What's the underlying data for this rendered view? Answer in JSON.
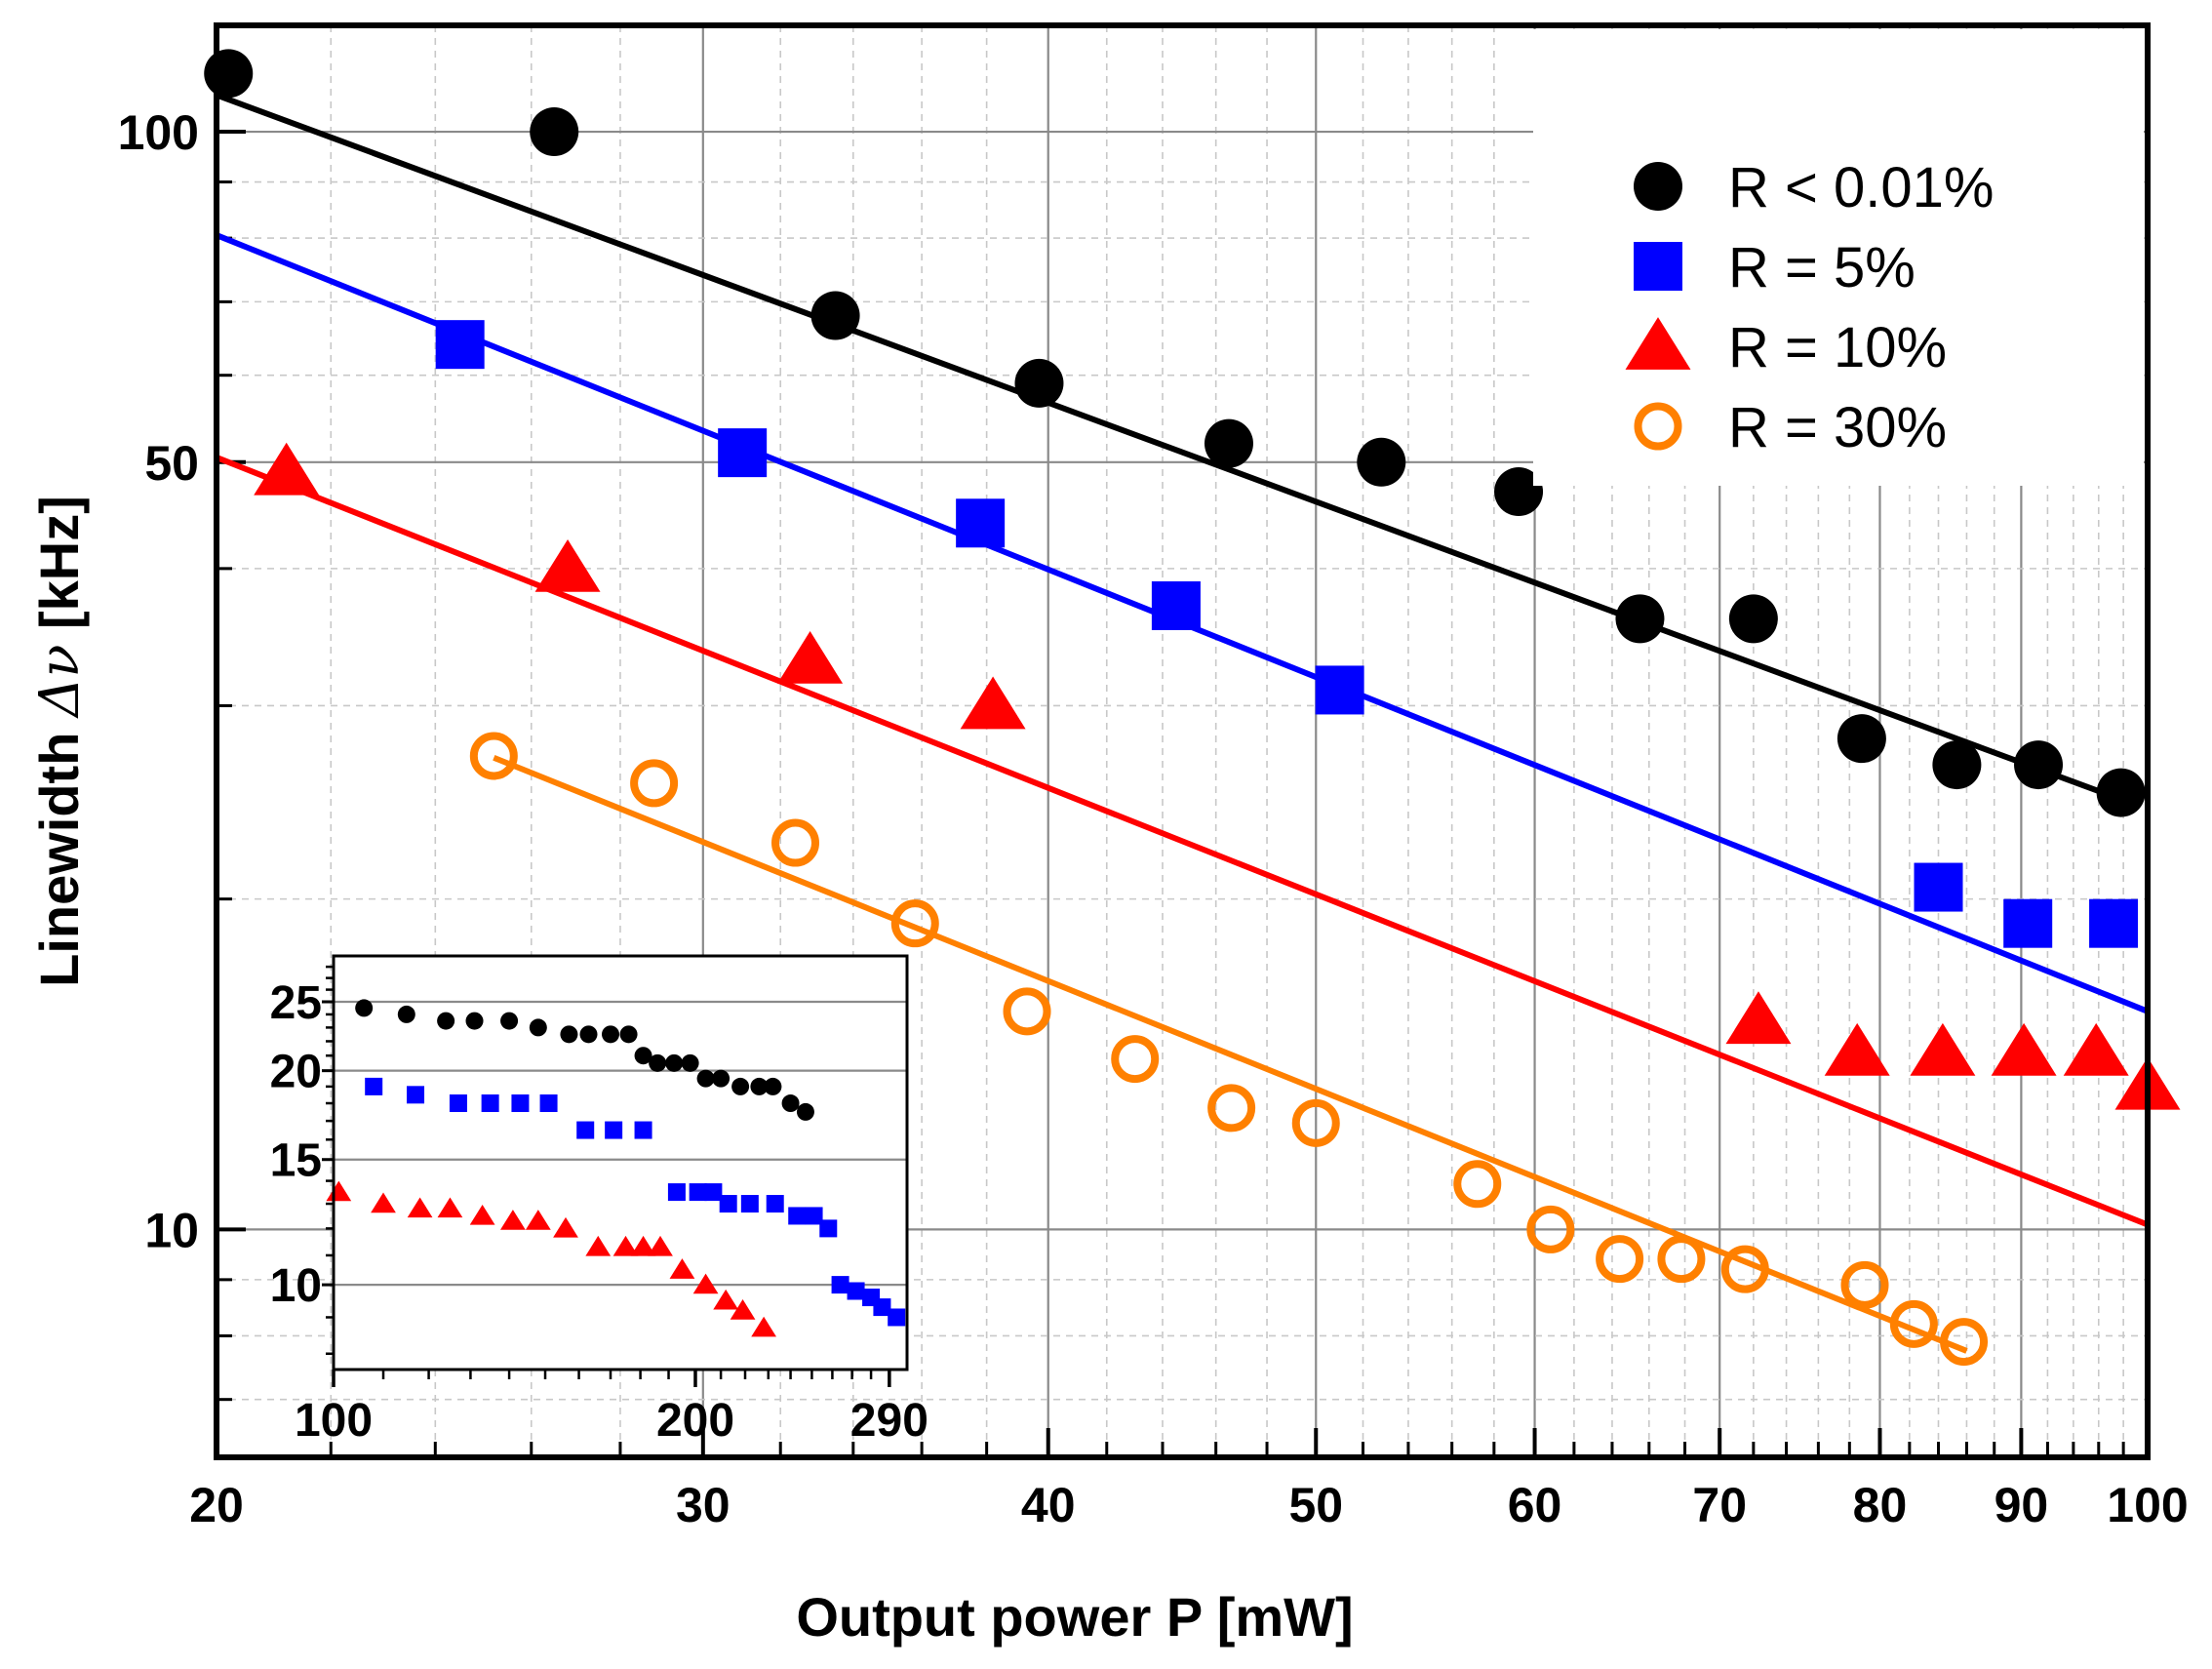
{
  "chart_data": [
    {
      "type": "scatter",
      "name": "main",
      "xlabel": "Output power P [mW]",
      "ylabel_prefix": "Linewidth ",
      "ylabel_symbol": "Δν",
      "ylabel_suffix": "  [kHz]",
      "xscale": "log",
      "yscale": "log",
      "xlim": [
        20,
        100
      ],
      "ylim": [
        6.2,
        125
      ],
      "grid": true,
      "xticks": [
        20,
        30,
        40,
        50,
        60,
        70,
        80,
        90,
        100
      ],
      "xtick_labels": [
        "20",
        "30",
        "40",
        "50",
        "60",
        "70",
        "80",
        "90",
        "100"
      ],
      "yticks": [
        10,
        50,
        100
      ],
      "ytick_labels": [
        "10",
        "50",
        "100"
      ],
      "legend_position": "top-right",
      "series": [
        {
          "name": "R < 0.01%",
          "marker": "filled-circle",
          "color": "#000000",
          "x": [
            20.2,
            26.5,
            33.5,
            39.7,
            46.5,
            52.8,
            59.2,
            65.5,
            72.0,
            78.8,
            85.3,
            91.3,
            97.8
          ],
          "y": [
            113,
            100,
            68,
            59,
            52,
            50,
            47,
            36,
            36,
            28,
            26.5,
            26.5,
            25
          ],
          "fit": {
            "x": [
              20,
              98
            ],
            "y": [
              108,
              24.6
            ]
          }
        },
        {
          "name": "R = 5%",
          "marker": "filled-square",
          "color": "#0000ff",
          "x": [
            24.5,
            31.0,
            37.8,
            44.5,
            51.0,
            84.0,
            90.5,
            97.2
          ],
          "y": [
            64,
            51,
            44,
            37,
            31,
            20.5,
            19,
            19
          ],
          "fit": {
            "x": [
              20,
              100
            ],
            "y": [
              80.5,
              15.8
            ]
          }
        },
        {
          "name": "R = 10%",
          "marker": "filled-triangle",
          "color": "#ff0000",
          "x": [
            21.2,
            26.8,
            32.8,
            38.2,
            72.3,
            78.5,
            84.3,
            90.2,
            95.8,
            100.0
          ],
          "y": [
            49,
            40,
            33,
            30,
            15.5,
            14.5,
            14.5,
            14.5,
            14.5,
            13.5
          ],
          "fit": {
            "x": [
              20,
              100
            ],
            "y": [
              50.5,
              10.1
            ]
          }
        },
        {
          "name": "R = 30%",
          "marker": "open-circle",
          "color": "#ff8000",
          "x": [
            25.2,
            28.8,
            32.4,
            35.8,
            39.3,
            43.0,
            46.6,
            50.0,
            57.2,
            60.8,
            64.4,
            67.8,
            71.5,
            79.0,
            82.3,
            85.8
          ],
          "y": [
            27,
            25.5,
            22.5,
            19,
            15.8,
            14.3,
            12.9,
            12.5,
            11,
            10,
            9.4,
            9.4,
            9.2,
            8.9,
            8.2,
            7.9
          ],
          "fit": {
            "x": [
              25.2,
              86
            ],
            "y": [
              26.9,
              7.75
            ]
          }
        }
      ]
    },
    {
      "type": "scatter",
      "name": "inset",
      "xscale": "log",
      "yscale": "log",
      "xlim": [
        100,
        300
      ],
      "ylim": [
        7.6,
        29
      ],
      "grid": true,
      "xticks": [
        100,
        200,
        290
      ],
      "xtick_labels": [
        "100",
        "200",
        "290"
      ],
      "yticks": [
        10,
        15,
        20,
        25
      ],
      "ytick_labels": [
        "10",
        "15",
        "20",
        "25"
      ],
      "series": [
        {
          "name": "R < 0.01%",
          "marker": "filled-circle",
          "color": "#000000",
          "x": [
            106,
            115,
            124,
            131,
            140,
            148,
            157,
            163,
            170,
            176,
            181,
            186,
            192,
            198,
            204,
            210,
            218,
            226,
            232,
            240,
            247
          ],
          "y": [
            24.5,
            24,
            23.5,
            23.5,
            23.5,
            23,
            22.5,
            22.5,
            22.5,
            22.5,
            21,
            20.5,
            20.5,
            20.5,
            19.5,
            19.5,
            19,
            19,
            19,
            18,
            17.5
          ],
          "fit": null
        },
        {
          "name": "R = 5%",
          "marker": "filled-square",
          "color": "#0000ff",
          "x": [
            108,
            117,
            127,
            135,
            143,
            151,
            162,
            171,
            181,
            193,
            201,
            207,
            213,
            222,
            233,
            243,
            251,
            258,
            264,
            272,
            280,
            286,
            294
          ],
          "y": [
            19,
            18.5,
            18,
            18,
            18,
            18,
            16.5,
            16.5,
            16.5,
            13.5,
            13.5,
            13.5,
            13,
            13,
            13,
            12.5,
            12.5,
            12,
            10,
            9.8,
            9.6,
            9.3,
            9
          ],
          "fit": null
        },
        {
          "name": "R = 10%",
          "marker": "filled-triangle",
          "color": "#ff0000",
          "x": [
            101,
            110,
            118,
            125,
            133,
            141,
            148,
            156,
            166,
            175,
            181,
            187,
            195,
            204,
            212,
            219,
            228
          ],
          "y": [
            13.5,
            13,
            12.8,
            12.8,
            12.5,
            12.3,
            12.3,
            12,
            11.3,
            11.3,
            11.3,
            11.3,
            10.5,
            10,
            9.5,
            9.2,
            8.7
          ],
          "fit": null
        }
      ]
    }
  ]
}
